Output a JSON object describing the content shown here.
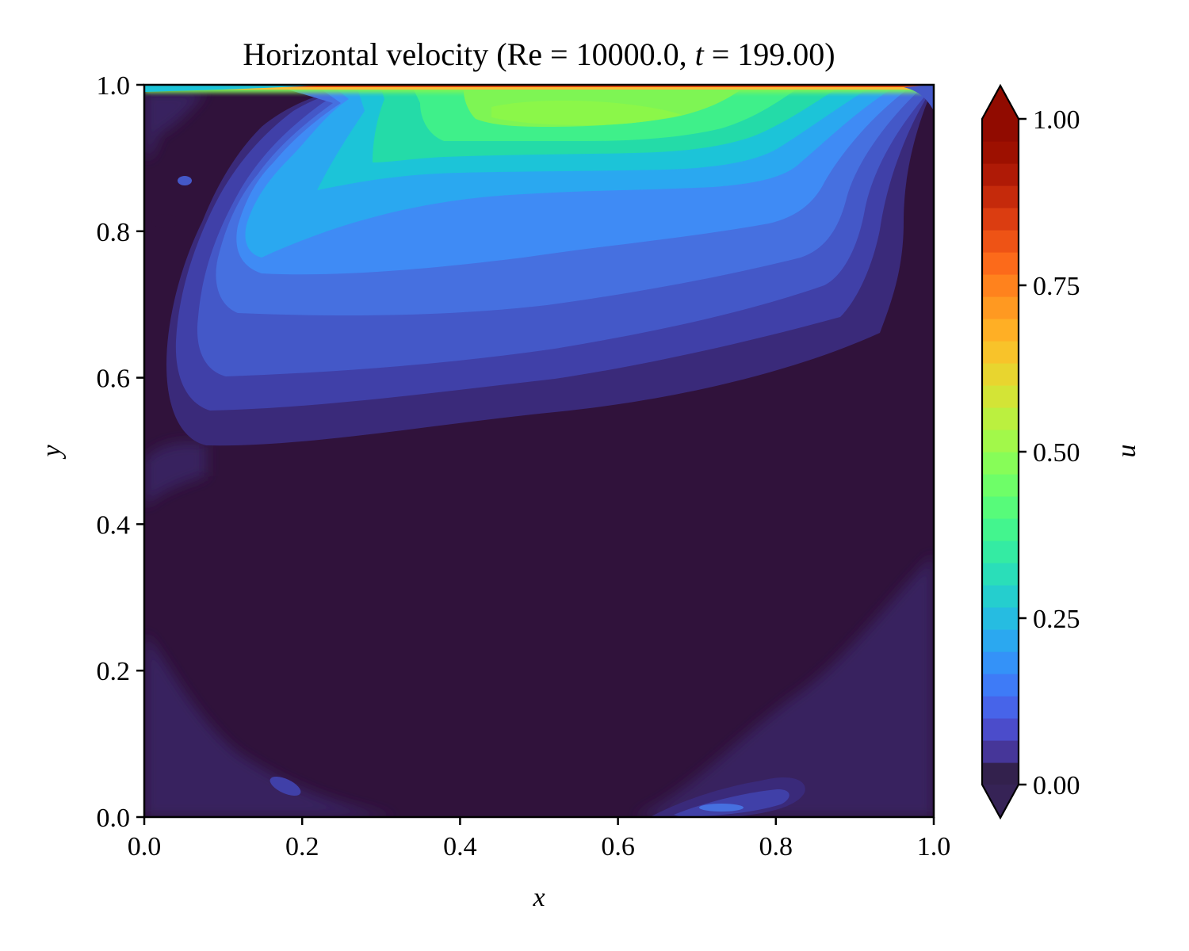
{
  "chart_data": {
    "type": "heatmap",
    "title": "Horizontal velocity (Re = 10000.0, t = 199.00)",
    "title_parts": {
      "prefix": "Horizontal velocity (",
      "re_symbol": "Re",
      "eq1": " = ",
      "re_value": "10000.0",
      "comma": ", ",
      "t_symbol": "t",
      "eq2": " = ",
      "t_value": "199.00",
      "suffix": ")"
    },
    "xlabel": "x",
    "ylabel": "y",
    "xlim": [
      0.0,
      1.0
    ],
    "ylim": [
      0.0,
      1.0
    ],
    "x_ticks": [
      "0.0",
      "0.2",
      "0.4",
      "0.6",
      "0.8",
      "1.0"
    ],
    "y_ticks": [
      "0.0",
      "0.2",
      "0.4",
      "0.6",
      "0.8",
      "1.0"
    ],
    "colorbar": {
      "label": "u",
      "range": [
        0.0,
        1.0
      ],
      "ticks": [
        "0.00",
        "0.25",
        "0.50",
        "0.75",
        "1.00"
      ],
      "levels": 30,
      "extend": "both",
      "colormap": "turbo"
    },
    "field_features": [
      {
        "kind": "lid-boundary-layer",
        "y": 1.0,
        "u": 1.0
      },
      {
        "kind": "jet-core",
        "x": 0.52,
        "y": 0.955,
        "u": 0.45
      },
      {
        "kind": "jet-arm",
        "x": 0.13,
        "y": 0.75,
        "u": 0.26
      },
      {
        "kind": "background",
        "u": 0.0
      },
      {
        "kind": "bottom-wall-blob",
        "x": 0.73,
        "y": 0.012,
        "u": 0.12
      },
      {
        "kind": "bottom-wall-blob",
        "x": 0.18,
        "y": 0.045,
        "u": 0.07
      }
    ],
    "grid": false
  }
}
